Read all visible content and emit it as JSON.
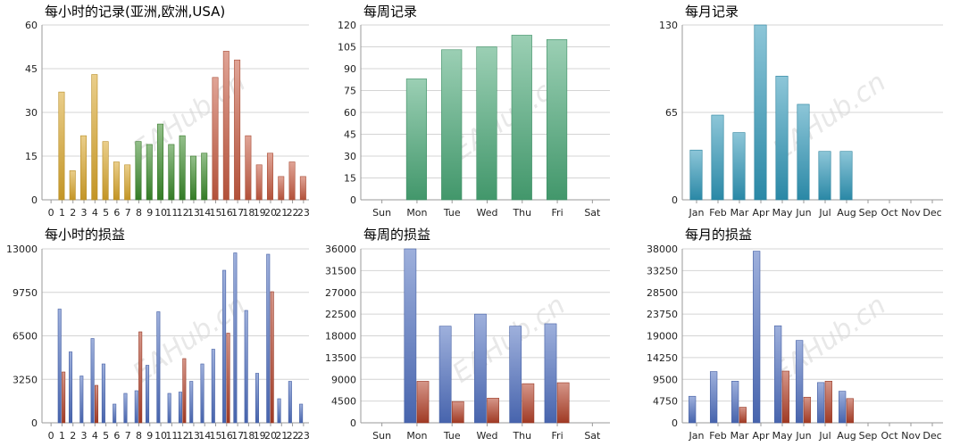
{
  "chart_data": [
    {
      "id": "hourly-records",
      "type": "bar",
      "title": "每小时的记录(亚洲,欧洲,USA)",
      "ylim": [
        0,
        60
      ],
      "yticks": [
        "0",
        "15",
        "30",
        "45",
        "60"
      ],
      "categories": [
        "0",
        "1",
        "2",
        "3",
        "4",
        "5",
        "6",
        "7",
        "8",
        "9",
        "10",
        "11",
        "12",
        "13",
        "14",
        "15",
        "16",
        "17",
        "18",
        "19",
        "20",
        "21",
        "22",
        "23"
      ],
      "series": [
        {
          "color": "#d9a52a",
          "values": [
            0,
            37,
            10,
            22,
            43,
            20,
            13,
            12,
            0,
            0,
            0,
            0,
            0,
            0,
            0,
            0,
            0,
            0,
            0,
            0,
            0,
            0,
            0,
            0
          ]
        },
        {
          "color": "#3a8a2a",
          "values": [
            0,
            0,
            0,
            0,
            0,
            0,
            0,
            0,
            20,
            19,
            26,
            19,
            22,
            15,
            16,
            0,
            0,
            0,
            0,
            0,
            0,
            0,
            0,
            0
          ]
        },
        {
          "color": "#c65a40",
          "values": [
            0,
            0,
            0,
            0,
            0,
            0,
            0,
            0,
            0,
            0,
            0,
            0,
            0,
            0,
            0,
            42,
            51,
            48,
            22,
            12,
            16,
            8,
            13,
            8
          ]
        }
      ],
      "stacked": false
    },
    {
      "id": "weekly-records",
      "type": "bar",
      "title": "每周记录",
      "ylim": [
        0,
        120
      ],
      "yticks": [
        "0",
        "15",
        "30",
        "45",
        "60",
        "75",
        "90",
        "105",
        "120"
      ],
      "categories": [
        "Sun",
        "Mon",
        "Tue",
        "Wed",
        "Thu",
        "Fri",
        "Sat"
      ],
      "series": [
        {
          "color": "#49a877",
          "values": [
            0,
            83,
            103,
            105,
            113,
            110,
            0
          ]
        }
      ]
    },
    {
      "id": "monthly-records",
      "type": "bar",
      "title": "每月记录",
      "ylim": [
        0,
        130
      ],
      "yticks": [
        "0",
        "65",
        "130"
      ],
      "categories": [
        "Jan",
        "Feb",
        "Mar",
        "Apr",
        "May",
        "Jun",
        "Jul",
        "Aug",
        "Sep",
        "Oct",
        "Nov",
        "Dec"
      ],
      "series": [
        {
          "color": "#2f97b8",
          "values": [
            37,
            63,
            50,
            130,
            92,
            71,
            36,
            36,
            0,
            0,
            0,
            0
          ]
        }
      ]
    },
    {
      "id": "hourly-pnl",
      "type": "bar",
      "title": "每小时的损益",
      "ylim": [
        0,
        13000
      ],
      "yticks": [
        "0",
        "3250",
        "6500",
        "9750",
        "13000"
      ],
      "categories": [
        "0",
        "1",
        "2",
        "3",
        "4",
        "5",
        "6",
        "7",
        "8",
        "9",
        "10",
        "11",
        "12",
        "13",
        "14",
        "15",
        "16",
        "17",
        "18",
        "19",
        "20",
        "21",
        "22",
        "23"
      ],
      "series": [
        {
          "color": "#4f6fc0",
          "values": [
            0,
            8500,
            5300,
            3500,
            6300,
            4400,
            1400,
            2200,
            2400,
            4300,
            8300,
            2200,
            2300,
            3100,
            4400,
            5500,
            11400,
            12700,
            8400,
            3700,
            12600,
            1800,
            3100,
            1400
          ]
        },
        {
          "color": "#b24028",
          "values": [
            0,
            3800,
            0,
            0,
            2800,
            0,
            0,
            0,
            6800,
            0,
            0,
            0,
            4800,
            0,
            0,
            0,
            6700,
            0,
            0,
            0,
            9800,
            0,
            0,
            0
          ]
        }
      ]
    },
    {
      "id": "weekly-pnl",
      "type": "bar",
      "title": "每周的损益",
      "ylim": [
        0,
        36000
      ],
      "yticks": [
        "0",
        "4500",
        "9000",
        "13500",
        "18000",
        "22500",
        "27000",
        "31500",
        "36000"
      ],
      "categories": [
        "Sun",
        "Mon",
        "Tue",
        "Wed",
        "Thu",
        "Fri",
        "Sat"
      ],
      "series": [
        {
          "color": "#4f6fc0",
          "values": [
            0,
            36000,
            20000,
            22500,
            20000,
            20500,
            0
          ]
        },
        {
          "color": "#b24028",
          "values": [
            0,
            8600,
            4400,
            5100,
            8100,
            8300,
            0
          ]
        }
      ]
    },
    {
      "id": "monthly-pnl",
      "type": "bar",
      "title": "每月的损益",
      "ylim": [
        0,
        38000
      ],
      "yticks": [
        "0",
        "4750",
        "9500",
        "14250",
        "19000",
        "23750",
        "28500",
        "33250",
        "38000"
      ],
      "categories": [
        "Jan",
        "Feb",
        "Mar",
        "Apr",
        "May",
        "Jun",
        "Jul",
        "Aug",
        "Sep",
        "Oct",
        "Nov",
        "Dec"
      ],
      "series": [
        {
          "color": "#4f6fc0",
          "values": [
            5800,
            11200,
            9100,
            37500,
            21200,
            18000,
            8800,
            6900,
            0,
            0,
            0,
            0
          ]
        },
        {
          "color": "#b24028",
          "values": [
            0,
            0,
            3400,
            0,
            11300,
            5600,
            9100,
            5300,
            0,
            0,
            0,
            0
          ]
        }
      ]
    }
  ],
  "watermark": "EAHub.cn"
}
